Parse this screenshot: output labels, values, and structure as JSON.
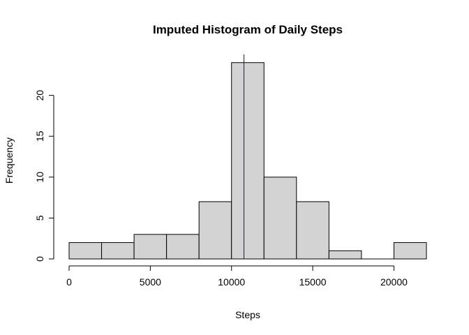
{
  "chart_data": {
    "type": "bar",
    "title": "Imputed Histogram of Daily Steps",
    "xlabel": "Steps",
    "ylabel": "Frequency",
    "bins": [
      {
        "start": 0,
        "end": 2000,
        "count": 2
      },
      {
        "start": 2000,
        "end": 4000,
        "count": 2
      },
      {
        "start": 4000,
        "end": 6000,
        "count": 3
      },
      {
        "start": 6000,
        "end": 8000,
        "count": 3
      },
      {
        "start": 8000,
        "end": 10000,
        "count": 7
      },
      {
        "start": 10000,
        "end": 12000,
        "count": 24
      },
      {
        "start": 12000,
        "end": 14000,
        "count": 10
      },
      {
        "start": 14000,
        "end": 16000,
        "count": 7
      },
      {
        "start": 16000,
        "end": 18000,
        "count": 1
      },
      {
        "start": 18000,
        "end": 20000,
        "count": 0
      },
      {
        "start": 20000,
        "end": 22000,
        "count": 2
      }
    ],
    "x_ticks": [
      0,
      5000,
      10000,
      15000,
      20000
    ],
    "y_ticks": [
      0,
      5,
      10,
      15,
      20
    ],
    "xlim": [
      0,
      22000
    ],
    "ylim": [
      0,
      25
    ],
    "reference_line": {
      "x": 10766,
      "color": "#0000ff"
    },
    "bar_color": "#d3d3d3",
    "border_color": "#000000",
    "grid": false
  }
}
